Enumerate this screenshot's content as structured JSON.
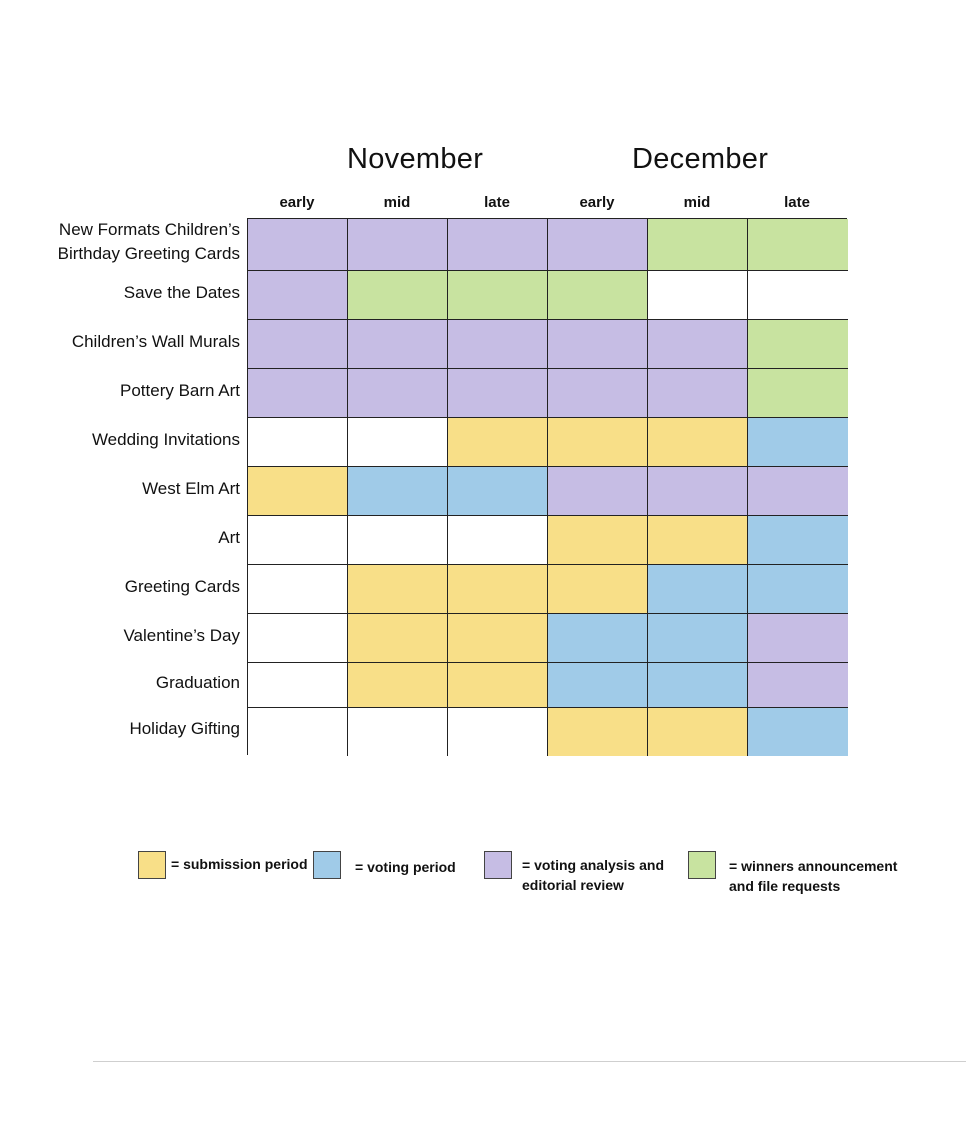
{
  "chart_data": {
    "type": "table",
    "title": "",
    "months": [
      "November",
      "December"
    ],
    "periods": [
      "early",
      "mid",
      "late",
      "early",
      "mid",
      "late"
    ],
    "rows": [
      {
        "label": "New Formats Children’s\nBirthday Greeting Cards",
        "cells": [
          "analysis",
          "analysis",
          "analysis",
          "analysis",
          "winners",
          "winners"
        ]
      },
      {
        "label": "Save the Dates",
        "cells": [
          "analysis",
          "winners",
          "winners",
          "winners",
          "none",
          "none"
        ]
      },
      {
        "label": "Children’s Wall Murals",
        "cells": [
          "analysis",
          "analysis",
          "analysis",
          "analysis",
          "analysis",
          "winners"
        ]
      },
      {
        "label": "Pottery Barn Art",
        "cells": [
          "analysis",
          "analysis",
          "analysis",
          "analysis",
          "analysis",
          "winners"
        ]
      },
      {
        "label": "Wedding Invitations",
        "cells": [
          "none",
          "none",
          "submission",
          "submission",
          "submission",
          "voting"
        ]
      },
      {
        "label": "West Elm Art",
        "cells": [
          "submission",
          "voting",
          "voting",
          "analysis",
          "analysis",
          "analysis"
        ]
      },
      {
        "label": "Art",
        "cells": [
          "none",
          "none",
          "none",
          "submission",
          "submission",
          "voting"
        ]
      },
      {
        "label": "Greeting Cards",
        "cells": [
          "none",
          "submission",
          "submission",
          "submission",
          "voting",
          "voting"
        ]
      },
      {
        "label": "Valentine’s Day",
        "cells": [
          "none",
          "submission",
          "submission",
          "voting",
          "voting",
          "analysis"
        ]
      },
      {
        "label": "Graduation",
        "cells": [
          "none",
          "submission",
          "submission",
          "voting",
          "voting",
          "analysis"
        ]
      },
      {
        "label": "Holiday Gifting",
        "cells": [
          "none",
          "none",
          "none",
          "submission",
          "submission",
          "voting"
        ]
      }
    ],
    "colors": {
      "submission": "#f8df88",
      "voting": "#a0cbe8",
      "analysis": "#c6bde4",
      "winners": "#c8e3a0",
      "none": "#ffffff"
    },
    "legend": [
      {
        "key": "submission",
        "label": "= submission period"
      },
      {
        "key": "voting",
        "label": "= voting period"
      },
      {
        "key": "analysis",
        "label": "= voting analysis and\n   editorial review"
      },
      {
        "key": "winners",
        "label": "= winners announcement\n   and file requests"
      }
    ],
    "legend_placement": "bottom"
  }
}
